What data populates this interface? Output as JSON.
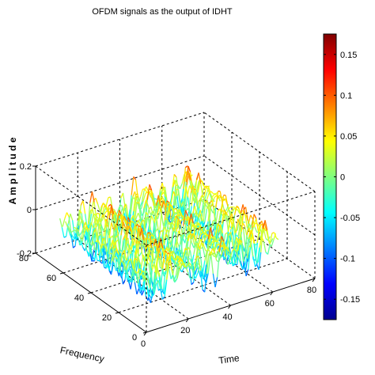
{
  "chart_data": {
    "type": "surface",
    "title": "OFDM signals as the output of IDHT",
    "xlabel": "Time",
    "ylabel": "Frequency",
    "zlabel": "A m p l i t u d e",
    "xlim": [
      0,
      80
    ],
    "ylim": [
      0,
      80
    ],
    "zlim": [
      -0.2,
      0.2
    ],
    "xticks": [
      "0",
      "20",
      "40",
      "60",
      "80"
    ],
    "yticks": [
      "0",
      "20",
      "40",
      "60",
      "80"
    ],
    "zticks": [
      "-0.2",
      "0",
      "0.2"
    ],
    "colormap": "jet",
    "colorbar": {
      "range": [
        -0.175,
        0.175
      ],
      "ticks": [
        "0.15",
        "0.1",
        "0.05",
        "0",
        "-0.05",
        "-0.1",
        "-0.15"
      ],
      "tick_values": [
        0.15,
        0.1,
        0.05,
        0,
        -0.05,
        -0.1,
        -0.15
      ]
    },
    "grid": true,
    "box": true,
    "data_extent": {
      "time": [
        1,
        64
      ],
      "frequency": [
        1,
        64
      ],
      "amplitude": [
        -0.175,
        0.175
      ]
    }
  }
}
